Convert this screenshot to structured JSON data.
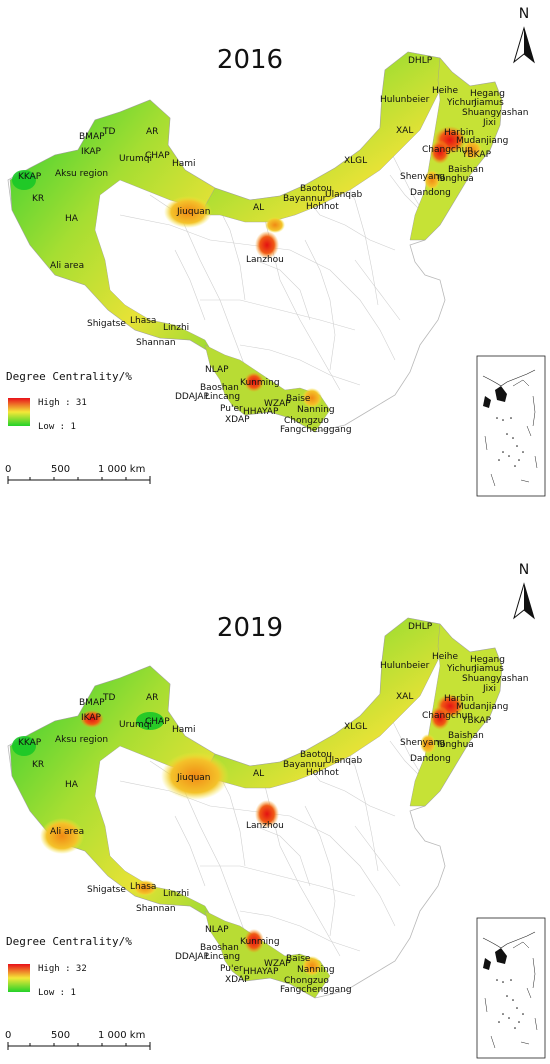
{
  "north_label": "N",
  "legend": {
    "title": "Degree Centrality/%",
    "low_label": "Low : 1"
  },
  "scale_bar": {
    "ticks": [
      "0",
      "500",
      "1 000 km"
    ]
  },
  "colors": {
    "high": "#e8101a",
    "mid": "#f4e838",
    "low": "#22d22a",
    "border": "#c8c8c8"
  },
  "panels": [
    {
      "year": "2016",
      "high_label": "High : 31",
      "hotspots": [
        {
          "name": "Harbin",
          "level": "high"
        },
        {
          "name": "Changchun",
          "level": "high"
        },
        {
          "name": "Lanzhou",
          "level": "high"
        },
        {
          "name": "Kunming",
          "level": "high"
        },
        {
          "name": "Jiuquan",
          "level": "medium"
        },
        {
          "name": "Shenyang",
          "level": "medium"
        }
      ]
    },
    {
      "year": "2019",
      "high_label": "High : 32",
      "hotspots": [
        {
          "name": "Harbin",
          "level": "high"
        },
        {
          "name": "Changchun",
          "level": "high"
        },
        {
          "name": "Lanzhou",
          "level": "high"
        },
        {
          "name": "Kunming",
          "level": "high"
        },
        {
          "name": "IKAP",
          "level": "high"
        },
        {
          "name": "Jiuquan",
          "level": "medium"
        },
        {
          "name": "Ali area",
          "level": "medium"
        }
      ]
    }
  ],
  "labels": [
    "DHLP",
    "Heihe",
    "Hegang",
    "Yichun",
    "Jiamus",
    "Shuangyashan",
    "Jixi",
    "Hulunbeier",
    "Harbin",
    "Mudanjiang",
    "Changchun",
    "YBKAP",
    "Baishan",
    "Tonghua",
    "Shenyang",
    "Dandong",
    "XAL",
    "XLGL",
    "Baotou",
    "Bayannur",
    "Ulanqab",
    "Hohhot",
    "AL",
    "Jiuquan",
    "Lanzhou",
    "BMAP",
    "TD",
    "AR",
    "IKAP",
    "CHAP",
    "Urumqi",
    "Hami",
    "KKAP",
    "Aksu region",
    "KR",
    "HA",
    "Ali area",
    "Shigatse",
    "Lhasa",
    "Linzhi",
    "Shannan",
    "NLAP",
    "Baoshan",
    "DDAJAP",
    "Lincang",
    "Pu'er",
    "XDAP",
    "Kunming",
    "HHAYAP",
    "WZAP",
    "Baise",
    "Nanning",
    "Chongzuo",
    "Fangchenggang"
  ]
}
